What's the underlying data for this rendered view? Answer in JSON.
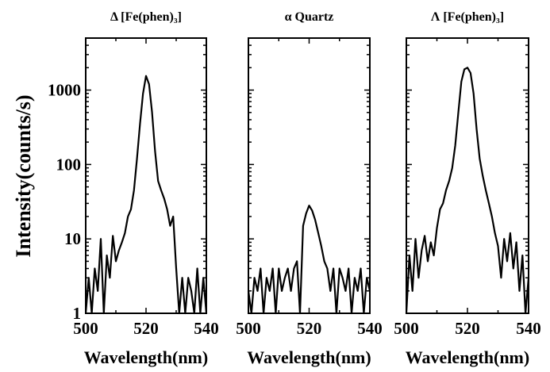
{
  "chart_data": [
    {
      "type": "line",
      "panel": "left",
      "title": "Δ [Fe(phen)₃]",
      "xlabel": "Wavelength(nm)",
      "ylabel": "Intensity(counts/s)",
      "xlim": [
        500,
        540
      ],
      "ylim": [
        1,
        5000
      ],
      "yscale": "log",
      "xticks": [
        "500",
        "520",
        "540"
      ],
      "yticks": [
        "1",
        "10",
        "100",
        "1000"
      ],
      "grid": false,
      "series": [
        {
          "x": [
            500,
            501,
            502,
            503,
            504,
            505,
            506,
            507,
            508,
            509,
            510,
            511,
            512,
            513,
            514,
            515,
            516,
            517,
            518,
            519,
            520,
            521,
            522,
            523,
            524,
            525,
            526,
            527,
            528,
            529,
            530,
            531,
            532,
            533,
            534,
            535,
            536,
            537,
            538,
            539,
            540
          ],
          "y": [
            1,
            3,
            1,
            4,
            2,
            10,
            1,
            6,
            3,
            11,
            5,
            7,
            9,
            12,
            20,
            25,
            45,
            120,
            350,
            900,
            1550,
            1200,
            500,
            150,
            60,
            45,
            35,
            25,
            15,
            20,
            4,
            1,
            3,
            1,
            3,
            2,
            1,
            4,
            1,
            3,
            1
          ]
        }
      ]
    },
    {
      "type": "line",
      "panel": "middle",
      "title": "α Quartz",
      "xlabel": "Wavelength(nm)",
      "xlim": [
        500,
        540
      ],
      "ylim": [
        1,
        5000
      ],
      "yscale": "log",
      "xticks": [
        "500",
        "520",
        "540"
      ],
      "grid": false,
      "series": [
        {
          "x": [
            500,
            501,
            502,
            503,
            504,
            505,
            506,
            507,
            508,
            509,
            510,
            511,
            512,
            513,
            514,
            515,
            516,
            517,
            518,
            519,
            520,
            521,
            522,
            523,
            524,
            525,
            526,
            527,
            528,
            529,
            530,
            531,
            532,
            533,
            534,
            535,
            536,
            537,
            538,
            539,
            540
          ],
          "y": [
            2,
            1,
            3,
            2,
            4,
            1,
            3,
            2,
            4,
            1,
            4,
            2,
            3,
            4,
            2,
            4,
            5,
            1,
            15,
            22,
            28,
            24,
            18,
            12,
            8,
            5,
            4,
            2,
            4,
            1,
            4,
            3,
            2,
            4,
            1,
            3,
            2,
            4,
            1,
            3,
            2
          ]
        }
      ]
    },
    {
      "type": "line",
      "panel": "right",
      "title": "Λ [Fe(phen)₃]",
      "xlabel": "Wavelength(nm)",
      "xlim": [
        500,
        540
      ],
      "ylim": [
        1,
        5000
      ],
      "yscale": "log",
      "xticks": [
        "500",
        "520",
        "540"
      ],
      "grid": false,
      "series": [
        {
          "x": [
            500,
            501,
            502,
            503,
            504,
            505,
            506,
            507,
            508,
            509,
            510,
            511,
            512,
            513,
            514,
            515,
            516,
            517,
            518,
            519,
            520,
            521,
            522,
            523,
            524,
            525,
            526,
            527,
            528,
            529,
            530,
            531,
            532,
            533,
            534,
            535,
            536,
            537,
            538,
            539,
            540
          ],
          "y": [
            1,
            6,
            2,
            10,
            3,
            7,
            11,
            5,
            9,
            6,
            14,
            25,
            30,
            45,
            60,
            90,
            180,
            500,
            1300,
            1900,
            2000,
            1700,
            900,
            300,
            120,
            70,
            45,
            30,
            20,
            12,
            8,
            3,
            10,
            5,
            12,
            4,
            9,
            2,
            6,
            1,
            3
          ]
        }
      ]
    }
  ]
}
